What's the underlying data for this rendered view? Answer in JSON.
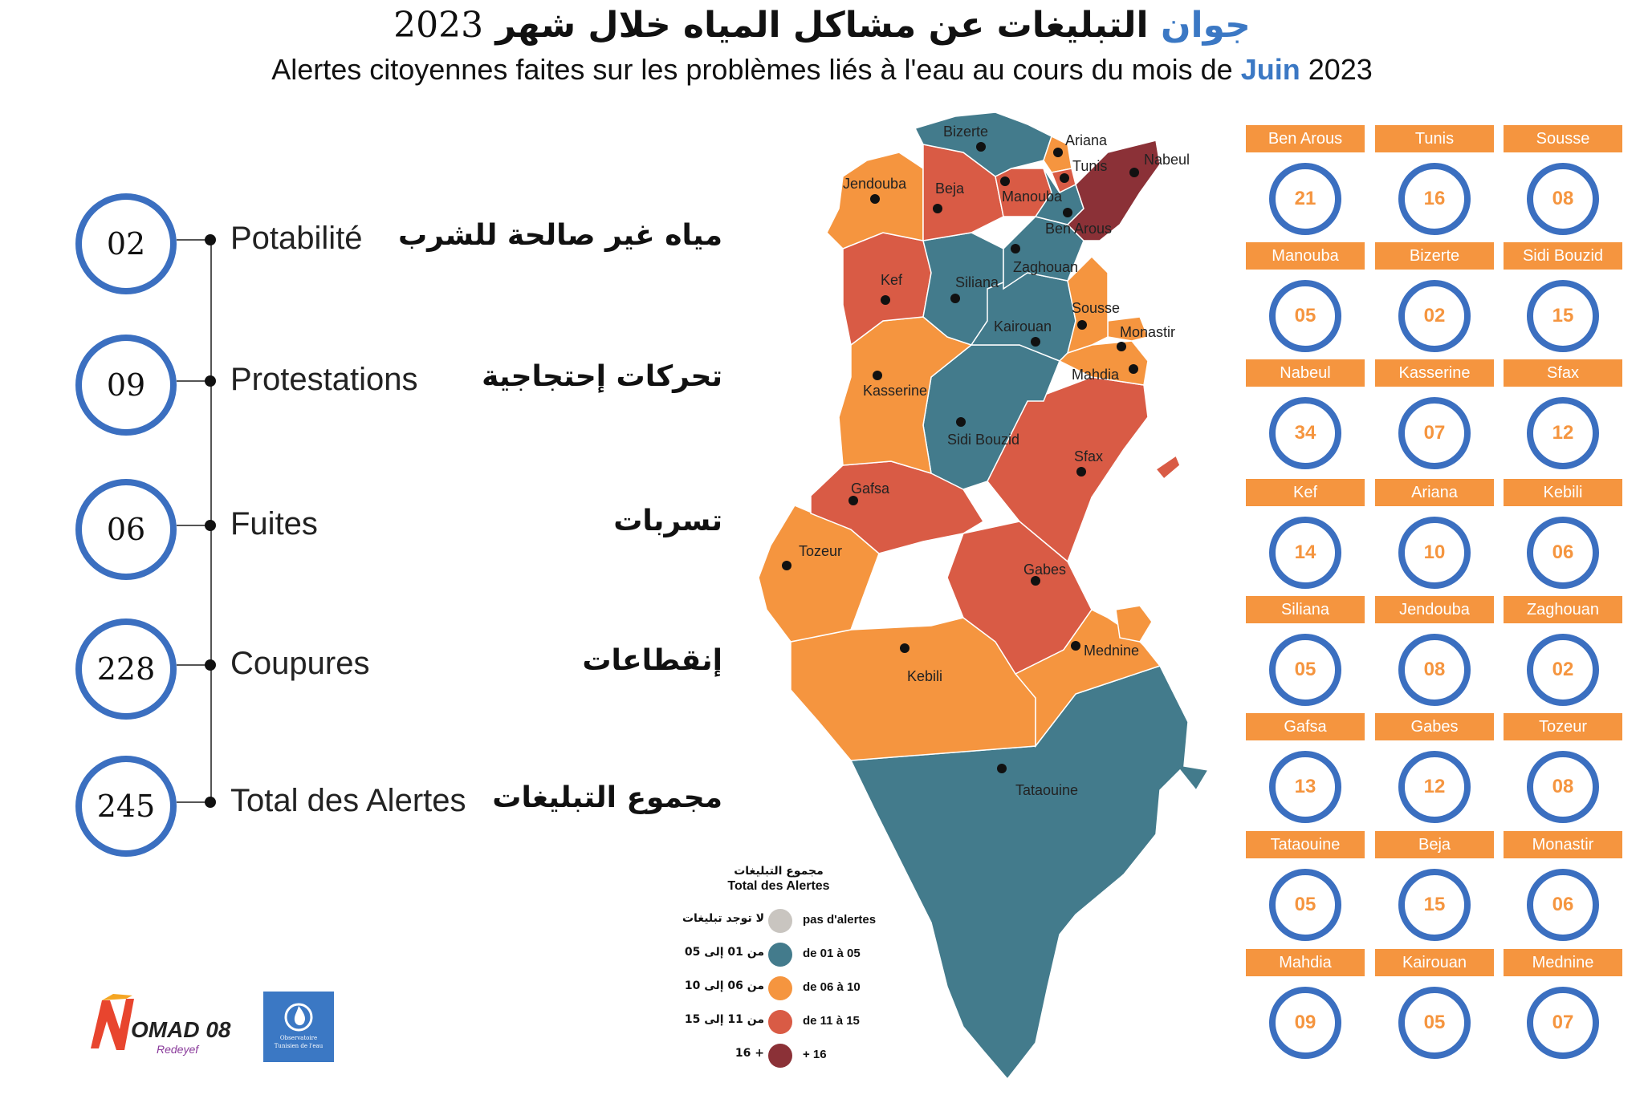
{
  "title": {
    "ar_text": "التبليغات عن مشاكل المياه خلال شهر",
    "ar_month": "جوان",
    "year": "2023",
    "fr_text": "Alertes citoyennes faites sur les problèmes liés à l'eau au cours du mois de",
    "fr_month": "Juin",
    "fr_year": "2023"
  },
  "stats": [
    {
      "value": "02",
      "fr": "Potabilité",
      "ar": "مياه غير صالحة للشرب"
    },
    {
      "value": "09",
      "fr": "Protestations",
      "ar": "تحركات إحتجاجية"
    },
    {
      "value": "06",
      "fr": "Fuites",
      "ar": "تسربات"
    },
    {
      "value": "228",
      "fr": "Coupures",
      "ar": "إنقطاعات"
    },
    {
      "value": "245",
      "fr": "Total des Alertes",
      "ar": "مجموع التبليغات"
    }
  ],
  "colors": {
    "none": "#c9c5c0",
    "c1_5": "#437b8c",
    "c6_10": "#f5953f",
    "c11_15": "#d95b45",
    "c16_plus": "#8b3137",
    "ring": "#3b6fc0",
    "tag": "#f5953f"
  },
  "map_labels": {
    "bizerte": "Bizerte",
    "ariana": "Ariana",
    "nabeul": "Nabeul",
    "tunis": "Tunis",
    "jendouba": "Jendouba",
    "beja": "Beja",
    "manouba": "Manouba",
    "ben_arous": "Ben Arous",
    "zaghouan": "Zaghouan",
    "kef": "Kef",
    "siliana": "Siliana",
    "sousse": "Sousse",
    "monastir": "Monastir",
    "kairouan": "Kairouan",
    "mahdia": "Mahdia",
    "kasserine": "Kasserine",
    "sidi_bouzid": "Sidi Bouzid",
    "sfax": "Sfax",
    "gafsa": "Gafsa",
    "tozeur": "Tozeur",
    "gabes": "Gabes",
    "kebili": "Kebili",
    "mednine": "Mednine",
    "tataouine": "Tataouine"
  },
  "legend": {
    "title_ar": "مجموع التبليغات",
    "title_fr": "Total des Alertes",
    "rows": [
      {
        "ar": "لا توجد تبليغات",
        "fr": "pas d'alertes",
        "color": "#c9c5c0"
      },
      {
        "ar": "من 01 إلى 05",
        "fr": "de 01 à 05",
        "color": "#437b8c"
      },
      {
        "ar": "من 06 إلى 10",
        "fr": "de 06 à 10",
        "color": "#f5953f"
      },
      {
        "ar": "من 11 إلى 15",
        "fr": "de 11 à 15",
        "color": "#d95b45"
      },
      {
        "ar": "+ 16",
        "fr": "+ 16",
        "color": "#8b3137"
      }
    ]
  },
  "logos": {
    "nomad_main": "OMAD 08",
    "nomad_sub": "Redeyef",
    "obs_line1": "Observatoire",
    "obs_line2": "Tunisien de l'eau"
  },
  "governorates": [
    {
      "name": "Ben Arous",
      "value": "21"
    },
    {
      "name": "Tunis",
      "value": "16"
    },
    {
      "name": "Sousse",
      "value": "08"
    },
    {
      "name": "Manouba",
      "value": "05"
    },
    {
      "name": "Bizerte",
      "value": "02"
    },
    {
      "name": "Sidi Bouzid",
      "value": "15"
    },
    {
      "name": "Nabeul",
      "value": "34"
    },
    {
      "name": "Kasserine",
      "value": "07"
    },
    {
      "name": "Sfax",
      "value": "12"
    },
    {
      "name": "Kef",
      "value": "14"
    },
    {
      "name": "Ariana",
      "value": "10"
    },
    {
      "name": "Kebili",
      "value": "06"
    },
    {
      "name": "Siliana",
      "value": "05"
    },
    {
      "name": "Jendouba",
      "value": "08"
    },
    {
      "name": "Zaghouan",
      "value": "02"
    },
    {
      "name": "Gafsa",
      "value": "13"
    },
    {
      "name": "Gabes",
      "value": "12"
    },
    {
      "name": "Tozeur",
      "value": "08"
    },
    {
      "name": "Tataouine",
      "value": "05"
    },
    {
      "name": "Beja",
      "value": "15"
    },
    {
      "name": "Monastir",
      "value": "06"
    },
    {
      "name": "Mahdia",
      "value": "09"
    },
    {
      "name": "Kairouan",
      "value": "05"
    },
    {
      "name": "Mednine",
      "value": "07"
    }
  ]
}
